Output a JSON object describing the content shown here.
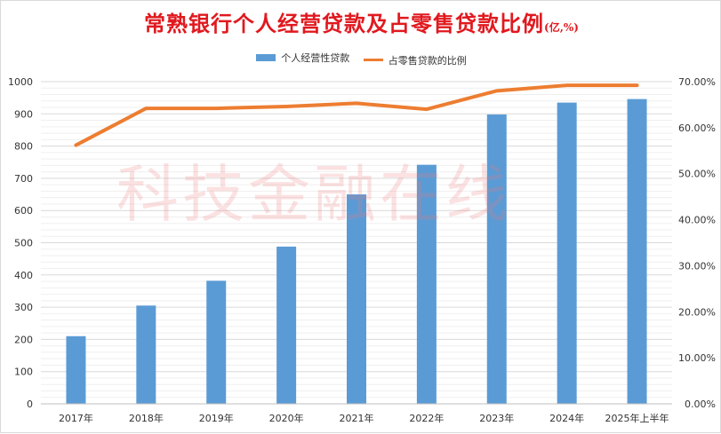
{
  "title": "常熟银行个人经营贷款及占零售贷款比例",
  "title_unit": "(亿,%)",
  "watermark": "科技金融在线",
  "colors": {
    "bar": "#5b9bd5",
    "line": "#ed7d31",
    "title": "#e0191f",
    "grid": "#d9d9d9"
  },
  "chart_data": {
    "type": "bar",
    "title": "常熟银行个人经营贷款及占零售贷款比例",
    "categories": [
      "2017年",
      "2018年",
      "2019年",
      "2020年",
      "2021年",
      "2022年",
      "2023年",
      "2024年",
      "2025年上半年"
    ],
    "series": [
      {
        "name": "个人经营性贷款",
        "type": "bar",
        "axis": "left",
        "values": [
          210,
          305,
          382,
          488,
          650,
          742,
          898,
          935,
          946
        ]
      },
      {
        "name": "占零售贷款的比例",
        "type": "line",
        "axis": "right",
        "values": [
          0.562,
          0.642,
          0.642,
          0.646,
          0.653,
          0.64,
          0.68,
          0.692,
          0.692
        ]
      }
    ],
    "y_left": {
      "min": 0,
      "max": 1000,
      "ticks": [
        "0",
        "100",
        "200",
        "300",
        "400",
        "500",
        "600",
        "700",
        "800",
        "900",
        "1000"
      ]
    },
    "y_right": {
      "min": 0,
      "max": 0.7,
      "ticks": [
        "0.00%",
        "10.00%",
        "20.00%",
        "30.00%",
        "40.00%",
        "50.00%",
        "60.00%",
        "70.00%"
      ]
    },
    "grid": true,
    "legend": "top-center"
  }
}
